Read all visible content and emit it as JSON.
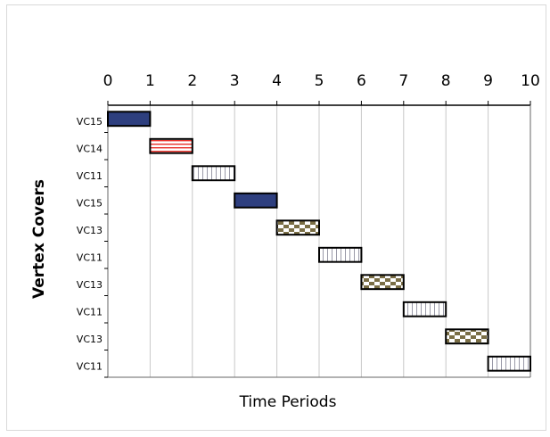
{
  "chart_data": {
    "type": "bar",
    "orientation": "horizontal",
    "title": "",
    "xlabel": "Time Periods",
    "ylabel": "Vertex Covers",
    "xlim": [
      0,
      10
    ],
    "x_ticks": [
      0,
      1,
      2,
      3,
      4,
      5,
      6,
      7,
      8,
      9,
      10
    ],
    "x_axis_position": "top",
    "grid": "vertical",
    "legend": "none",
    "categories": [
      "VC15",
      "VC14",
      "VC11",
      "VC15",
      "VC13",
      "VC11",
      "VC13",
      "VC11",
      "VC13",
      "VC11"
    ],
    "bars": [
      {
        "label": "VC15",
        "start": 0,
        "end": 1,
        "pattern": "solid-navy"
      },
      {
        "label": "VC14",
        "start": 1,
        "end": 2,
        "pattern": "red-horizontal-stripes"
      },
      {
        "label": "VC11",
        "start": 2,
        "end": 3,
        "pattern": "vertical-stripes"
      },
      {
        "label": "VC15",
        "start": 3,
        "end": 4,
        "pattern": "solid-navy"
      },
      {
        "label": "VC13",
        "start": 4,
        "end": 5,
        "pattern": "checkerboard"
      },
      {
        "label": "VC11",
        "start": 5,
        "end": 6,
        "pattern": "vertical-stripes"
      },
      {
        "label": "VC13",
        "start": 6,
        "end": 7,
        "pattern": "checkerboard"
      },
      {
        "label": "VC11",
        "start": 7,
        "end": 8,
        "pattern": "vertical-stripes"
      },
      {
        "label": "VC13",
        "start": 8,
        "end": 9,
        "pattern": "checkerboard"
      },
      {
        "label": "VC11",
        "start": 9,
        "end": 10,
        "pattern": "vertical-stripes"
      }
    ],
    "colors": {
      "navy": "#2e3f7f",
      "red_stripe": "#e8302a",
      "stripe_grey": "#9a9aa8",
      "checker_dark": "#7a6e45",
      "checker_light": "#ffffff",
      "grid": "#c8c8c8",
      "axis": "#000000"
    }
  }
}
